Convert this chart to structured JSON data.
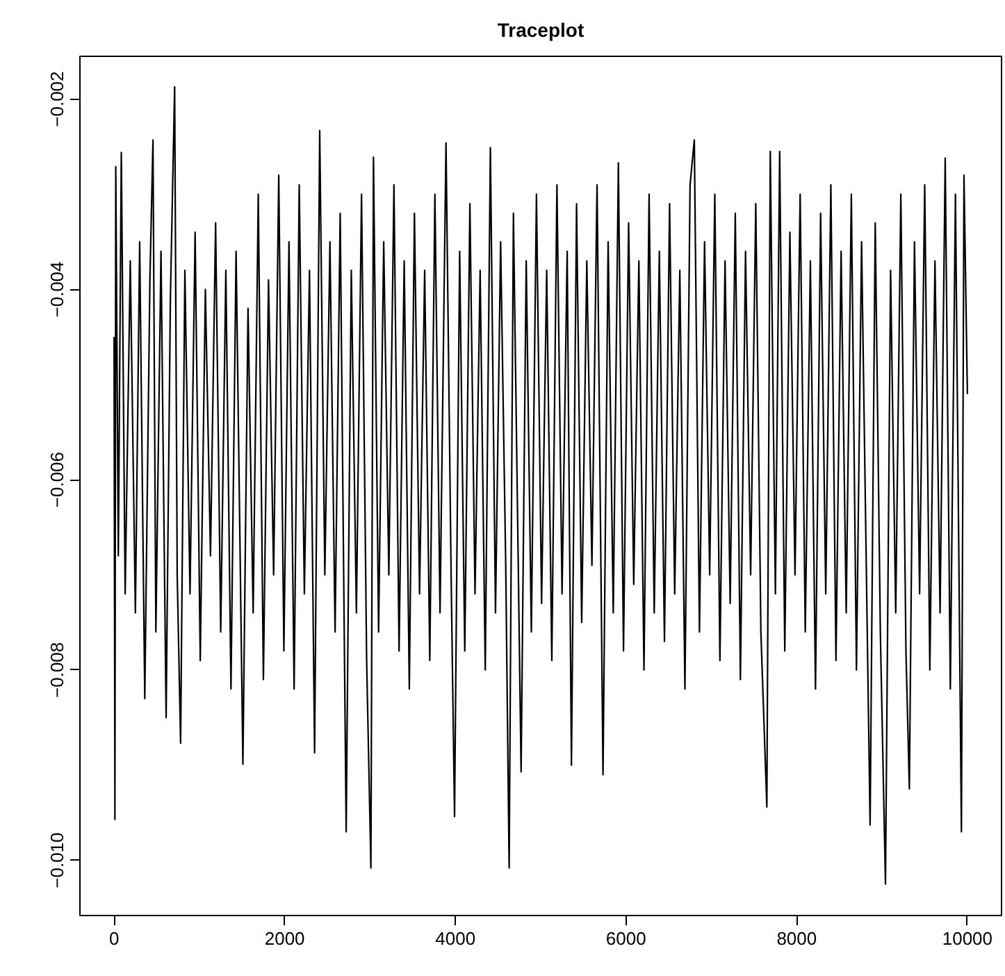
{
  "chart_data": {
    "type": "line",
    "title": "Traceplot",
    "xlim": [
      -400,
      10400
    ],
    "xticks": [
      0,
      2000,
      4000,
      6000,
      8000,
      10000
    ],
    "ylim": [
      -0.01058,
      -0.00155
    ],
    "yticks": [
      {
        "value": -0.01,
        "label": "−0.010"
      },
      {
        "value": -0.008,
        "label": "−0.008"
      },
      {
        "value": -0.006,
        "label": "−0.006"
      },
      {
        "value": -0.004,
        "label": "−0.004"
      },
      {
        "value": -0.002,
        "label": "−0.002"
      }
    ],
    "grid": false,
    "series": [
      {
        "color": "#000000",
        "line_style": "solid",
        "x": [
          0,
          10,
          20,
          50,
          85,
          130,
          190,
          250,
          300,
          360,
          420,
          456,
          490,
          550,
          610,
          660,
          710,
          740,
          780,
          830,
          890,
          950,
          1010,
          1070,
          1130,
          1190,
          1250,
          1310,
          1370,
          1430,
          1510,
          1570,
          1630,
          1690,
          1750,
          1810,
          1870,
          1930,
          1990,
          2050,
          2110,
          2170,
          2230,
          2290,
          2350,
          2410,
          2470,
          2530,
          2590,
          2650,
          2720,
          2780,
          2840,
          2900,
          2960,
          3010,
          3040,
          3100,
          3160,
          3220,
          3280,
          3340,
          3400,
          3460,
          3520,
          3580,
          3640,
          3700,
          3760,
          3820,
          3890,
          3950,
          3990,
          4050,
          4110,
          4170,
          4230,
          4290,
          4350,
          4410,
          4470,
          4530,
          4590,
          4630,
          4680,
          4770,
          4830,
          4890,
          4950,
          5010,
          5070,
          5130,
          5190,
          5250,
          5310,
          5360,
          5420,
          5480,
          5540,
          5600,
          5660,
          5730,
          5790,
          5850,
          5910,
          5970,
          6030,
          6090,
          6150,
          6210,
          6270,
          6330,
          6390,
          6450,
          6510,
          6570,
          6630,
          6690,
          6750,
          6800,
          6860,
          6920,
          6980,
          7040,
          7100,
          7160,
          7220,
          7280,
          7340,
          7400,
          7460,
          7520,
          7580,
          7650,
          7690,
          7750,
          7800,
          7860,
          7920,
          7980,
          8040,
          8100,
          8160,
          8220,
          8280,
          8340,
          8400,
          8460,
          8520,
          8580,
          8640,
          8700,
          8760,
          8820,
          8860,
          8920,
          8980,
          9040,
          9100,
          9160,
          9220,
          9280,
          9320,
          9380,
          9440,
          9500,
          9560,
          9620,
          9680,
          9740,
          9800,
          9860,
          9930,
          9960,
          10000
        ],
        "values": [
          -0.0045,
          -0.00957,
          -0.00271,
          -0.0068,
          -0.00256,
          -0.0072,
          -0.0037,
          -0.0074,
          -0.0035,
          -0.0083,
          -0.0039,
          -0.00243,
          -0.0076,
          -0.0036,
          -0.0085,
          -0.0041,
          -0.00187,
          -0.007,
          -0.00877,
          -0.0038,
          -0.0072,
          -0.0034,
          -0.0079,
          -0.004,
          -0.0068,
          -0.0033,
          -0.0076,
          -0.0038,
          -0.0082,
          -0.0036,
          -0.00899,
          -0.0042,
          -0.0074,
          -0.003,
          -0.0081,
          -0.0039,
          -0.007,
          -0.0028,
          -0.0078,
          -0.0035,
          -0.0082,
          -0.0029,
          -0.0072,
          -0.0038,
          -0.00887,
          -0.00233,
          -0.007,
          -0.0035,
          -0.0076,
          -0.0032,
          -0.0097,
          -0.0038,
          -0.0074,
          -0.003,
          -0.0079,
          -0.01008,
          -0.00261,
          -0.0076,
          -0.0035,
          -0.007,
          -0.0029,
          -0.0078,
          -0.0037,
          -0.0082,
          -0.0032,
          -0.0072,
          -0.0038,
          -0.0079,
          -0.003,
          -0.0074,
          -0.00246,
          -0.007,
          -0.00954,
          -0.0036,
          -0.0078,
          -0.0031,
          -0.0072,
          -0.0038,
          -0.008,
          -0.00251,
          -0.0074,
          -0.0035,
          -0.0069,
          -0.01008,
          -0.0032,
          -0.00907,
          -0.0037,
          -0.0076,
          -0.003,
          -0.0073,
          -0.0038,
          -0.0079,
          -0.0029,
          -0.0072,
          -0.0036,
          -0.009,
          -0.0031,
          -0.0075,
          -0.0037,
          -0.0069,
          -0.0029,
          -0.0091,
          -0.0035,
          -0.0074,
          -0.00267,
          -0.0078,
          -0.0033,
          -0.0071,
          -0.0037,
          -0.008,
          -0.003,
          -0.0074,
          -0.0036,
          -0.0077,
          -0.0031,
          -0.0072,
          -0.0038,
          -0.0082,
          -0.0029,
          -0.00243,
          -0.0076,
          -0.0035,
          -0.007,
          -0.003,
          -0.0079,
          -0.0037,
          -0.0073,
          -0.0032,
          -0.0081,
          -0.0036,
          -0.007,
          -0.0031,
          -0.0076,
          -0.00944,
          -0.00255,
          -0.0072,
          -0.00255,
          -0.0078,
          -0.0034,
          -0.007,
          -0.003,
          -0.0076,
          -0.0037,
          -0.0082,
          -0.0032,
          -0.0072,
          -0.0029,
          -0.0079,
          -0.0036,
          -0.0074,
          -0.003,
          -0.008,
          -0.0035,
          -0.0072,
          -0.00963,
          -0.0033,
          -0.0076,
          -0.01025,
          -0.0038,
          -0.0074,
          -0.003,
          -0.0078,
          -0.00925,
          -0.0035,
          -0.0072,
          -0.0029,
          -0.008,
          -0.0037,
          -0.0074,
          -0.00262,
          -0.0082,
          -0.003,
          -0.0097,
          -0.0028,
          -0.0051
        ]
      }
    ]
  }
}
